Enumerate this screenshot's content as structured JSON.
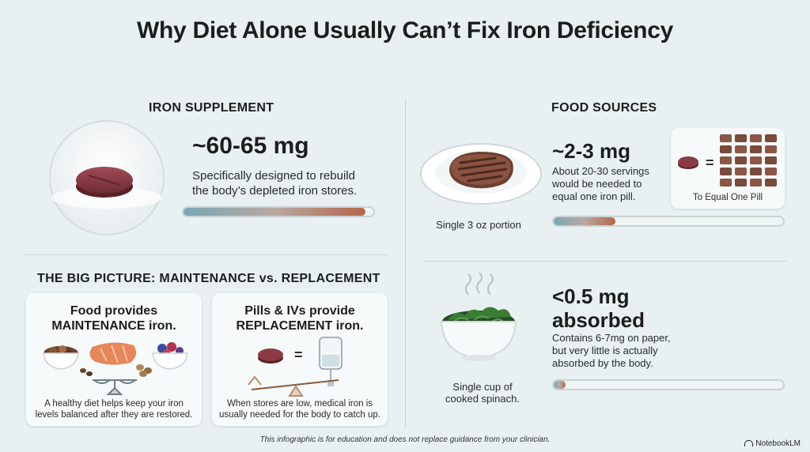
{
  "title": "Why Diet Alone Usually Can’t Fix Iron Deficiency",
  "supplement": {
    "heading": "IRON SUPPLEMENT",
    "amount": "~60-65 mg",
    "desc_line1": "Specifically designed to rebuild",
    "desc_line2": "the body’s depleted iron stores.",
    "bar_fraction": 0.96
  },
  "food_sources": {
    "heading": "FOOD SOURCES",
    "steak": {
      "amount": "~2-3 mg",
      "desc_line1": "About 20-30 servings",
      "desc_line2": "would be needed to",
      "desc_line3": "equal one iron pill.",
      "caption": "Single 3 oz portion",
      "compare_label": "To Equal One Pill",
      "bar_fraction": 0.27
    },
    "spinach": {
      "amount_line1": "<0.5 mg",
      "amount_line2": "absorbed",
      "desc_line1": "Contains 6-7mg on paper,",
      "desc_line2": "but very little is actually",
      "desc_line3": "absorbed by the body.",
      "caption_line1": "Single cup of",
      "caption_line2": "cooked spinach.",
      "bar_fraction": 0.05
    }
  },
  "big_picture": {
    "heading": "THE BIG PICTURE: MAINTENANCE vs. REPLACEMENT",
    "food_card": {
      "title_line1": "Food provides",
      "title_line2": "MAINTENANCE iron.",
      "desc_line1": "A healthy diet helps keep your iron",
      "desc_line2": "levels balanced after they are restored."
    },
    "pill_card": {
      "title_line1": "Pills & IVs provide",
      "title_line2": "REPLACEMENT iron.",
      "desc_line1": "When stores are low, medical iron is",
      "desc_line2": "usually needed for the body to catch up."
    }
  },
  "footer": "This infographic is for education and does not replace guidance from your clinician.",
  "brand": "NotebookLM",
  "colors": {
    "background": "#e8f0f2",
    "pill": "#8a3b44",
    "meat": "#7a4a3a",
    "spinach": "#2f6b2c",
    "bar_end": "#b5654a"
  }
}
